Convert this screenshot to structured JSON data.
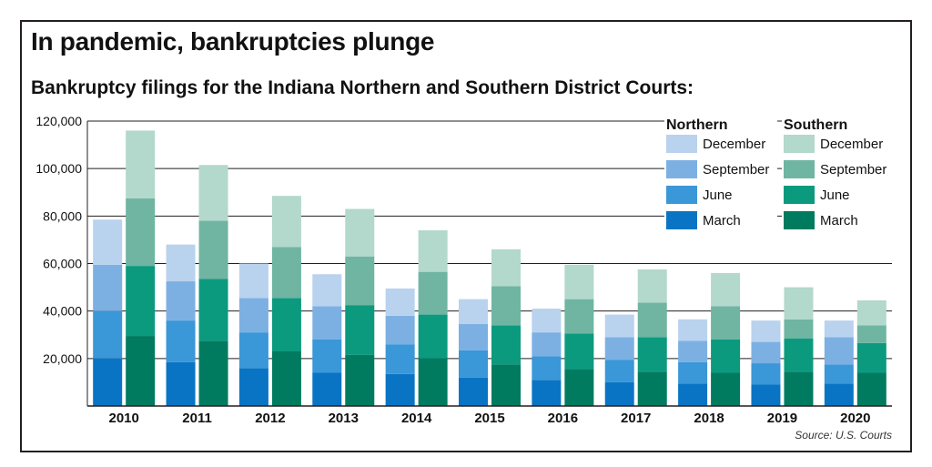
{
  "title": "In pandemic, bankruptcies plunge",
  "subtitle": "Bankruptcy filings for the Indiana Northern and Southern District Courts:",
  "source": "Source: U.S. Courts",
  "chart_data": {
    "type": "bar",
    "stacked": true,
    "grouped": true,
    "categories": [
      "2010",
      "2011",
      "2012",
      "2013",
      "2014",
      "2015",
      "2016",
      "2017",
      "2018",
      "2019",
      "2020"
    ],
    "ylim": [
      0,
      120000
    ],
    "yticks": [
      20000,
      40000,
      60000,
      80000,
      100000,
      120000
    ],
    "ytick_labels": [
      "20,000",
      "40,000",
      "60,000",
      "80,000",
      "100,000",
      "120,000"
    ],
    "grid": true,
    "legend_position": "top-right",
    "groups": [
      {
        "name": "Northern",
        "series": [
          {
            "name": "March",
            "color": "#0a74c4",
            "values": [
              20000,
              18500,
              16000,
              14000,
              13500,
              12000,
              11000,
              10000,
              9500,
              9000,
              9500
            ]
          },
          {
            "name": "June",
            "color": "#3a97d8",
            "values": [
              20000,
              17500,
              15000,
              14000,
              12500,
              11500,
              10000,
              9500,
              9000,
              9000,
              8000
            ]
          },
          {
            "name": "September",
            "color": "#7cb0e2",
            "values": [
              19500,
              16500,
              14500,
              14000,
              12000,
              11000,
              10000,
              9500,
              9000,
              9000,
              11500
            ]
          },
          {
            "name": "December",
            "color": "#b9d2ee",
            "values": [
              19000,
              15500,
              14500,
              13500,
              11500,
              10500,
              10000,
              9500,
              9000,
              9000,
              7000
            ]
          }
        ]
      },
      {
        "name": "Southern",
        "series": [
          {
            "name": "March",
            "color": "#017b5f",
            "values": [
              29500,
              27500,
              23000,
              21500,
              20000,
              17500,
              15500,
              14500,
              14000,
              14500,
              14000
            ]
          },
          {
            "name": "June",
            "color": "#0b9a7e",
            "values": [
              29500,
              26000,
              22500,
              21000,
              18500,
              16500,
              15000,
              14500,
              14000,
              14000,
              12500
            ]
          },
          {
            "name": "September",
            "color": "#6fb5a2",
            "values": [
              28500,
              24500,
              21500,
              20500,
              18000,
              16500,
              14500,
              14500,
              14000,
              8000,
              7500
            ]
          },
          {
            "name": "December",
            "color": "#b3d8cc",
            "values": [
              28500,
              23500,
              21500,
              20000,
              17500,
              15500,
              14500,
              14000,
              14000,
              13500,
              10500
            ]
          }
        ]
      }
    ]
  }
}
